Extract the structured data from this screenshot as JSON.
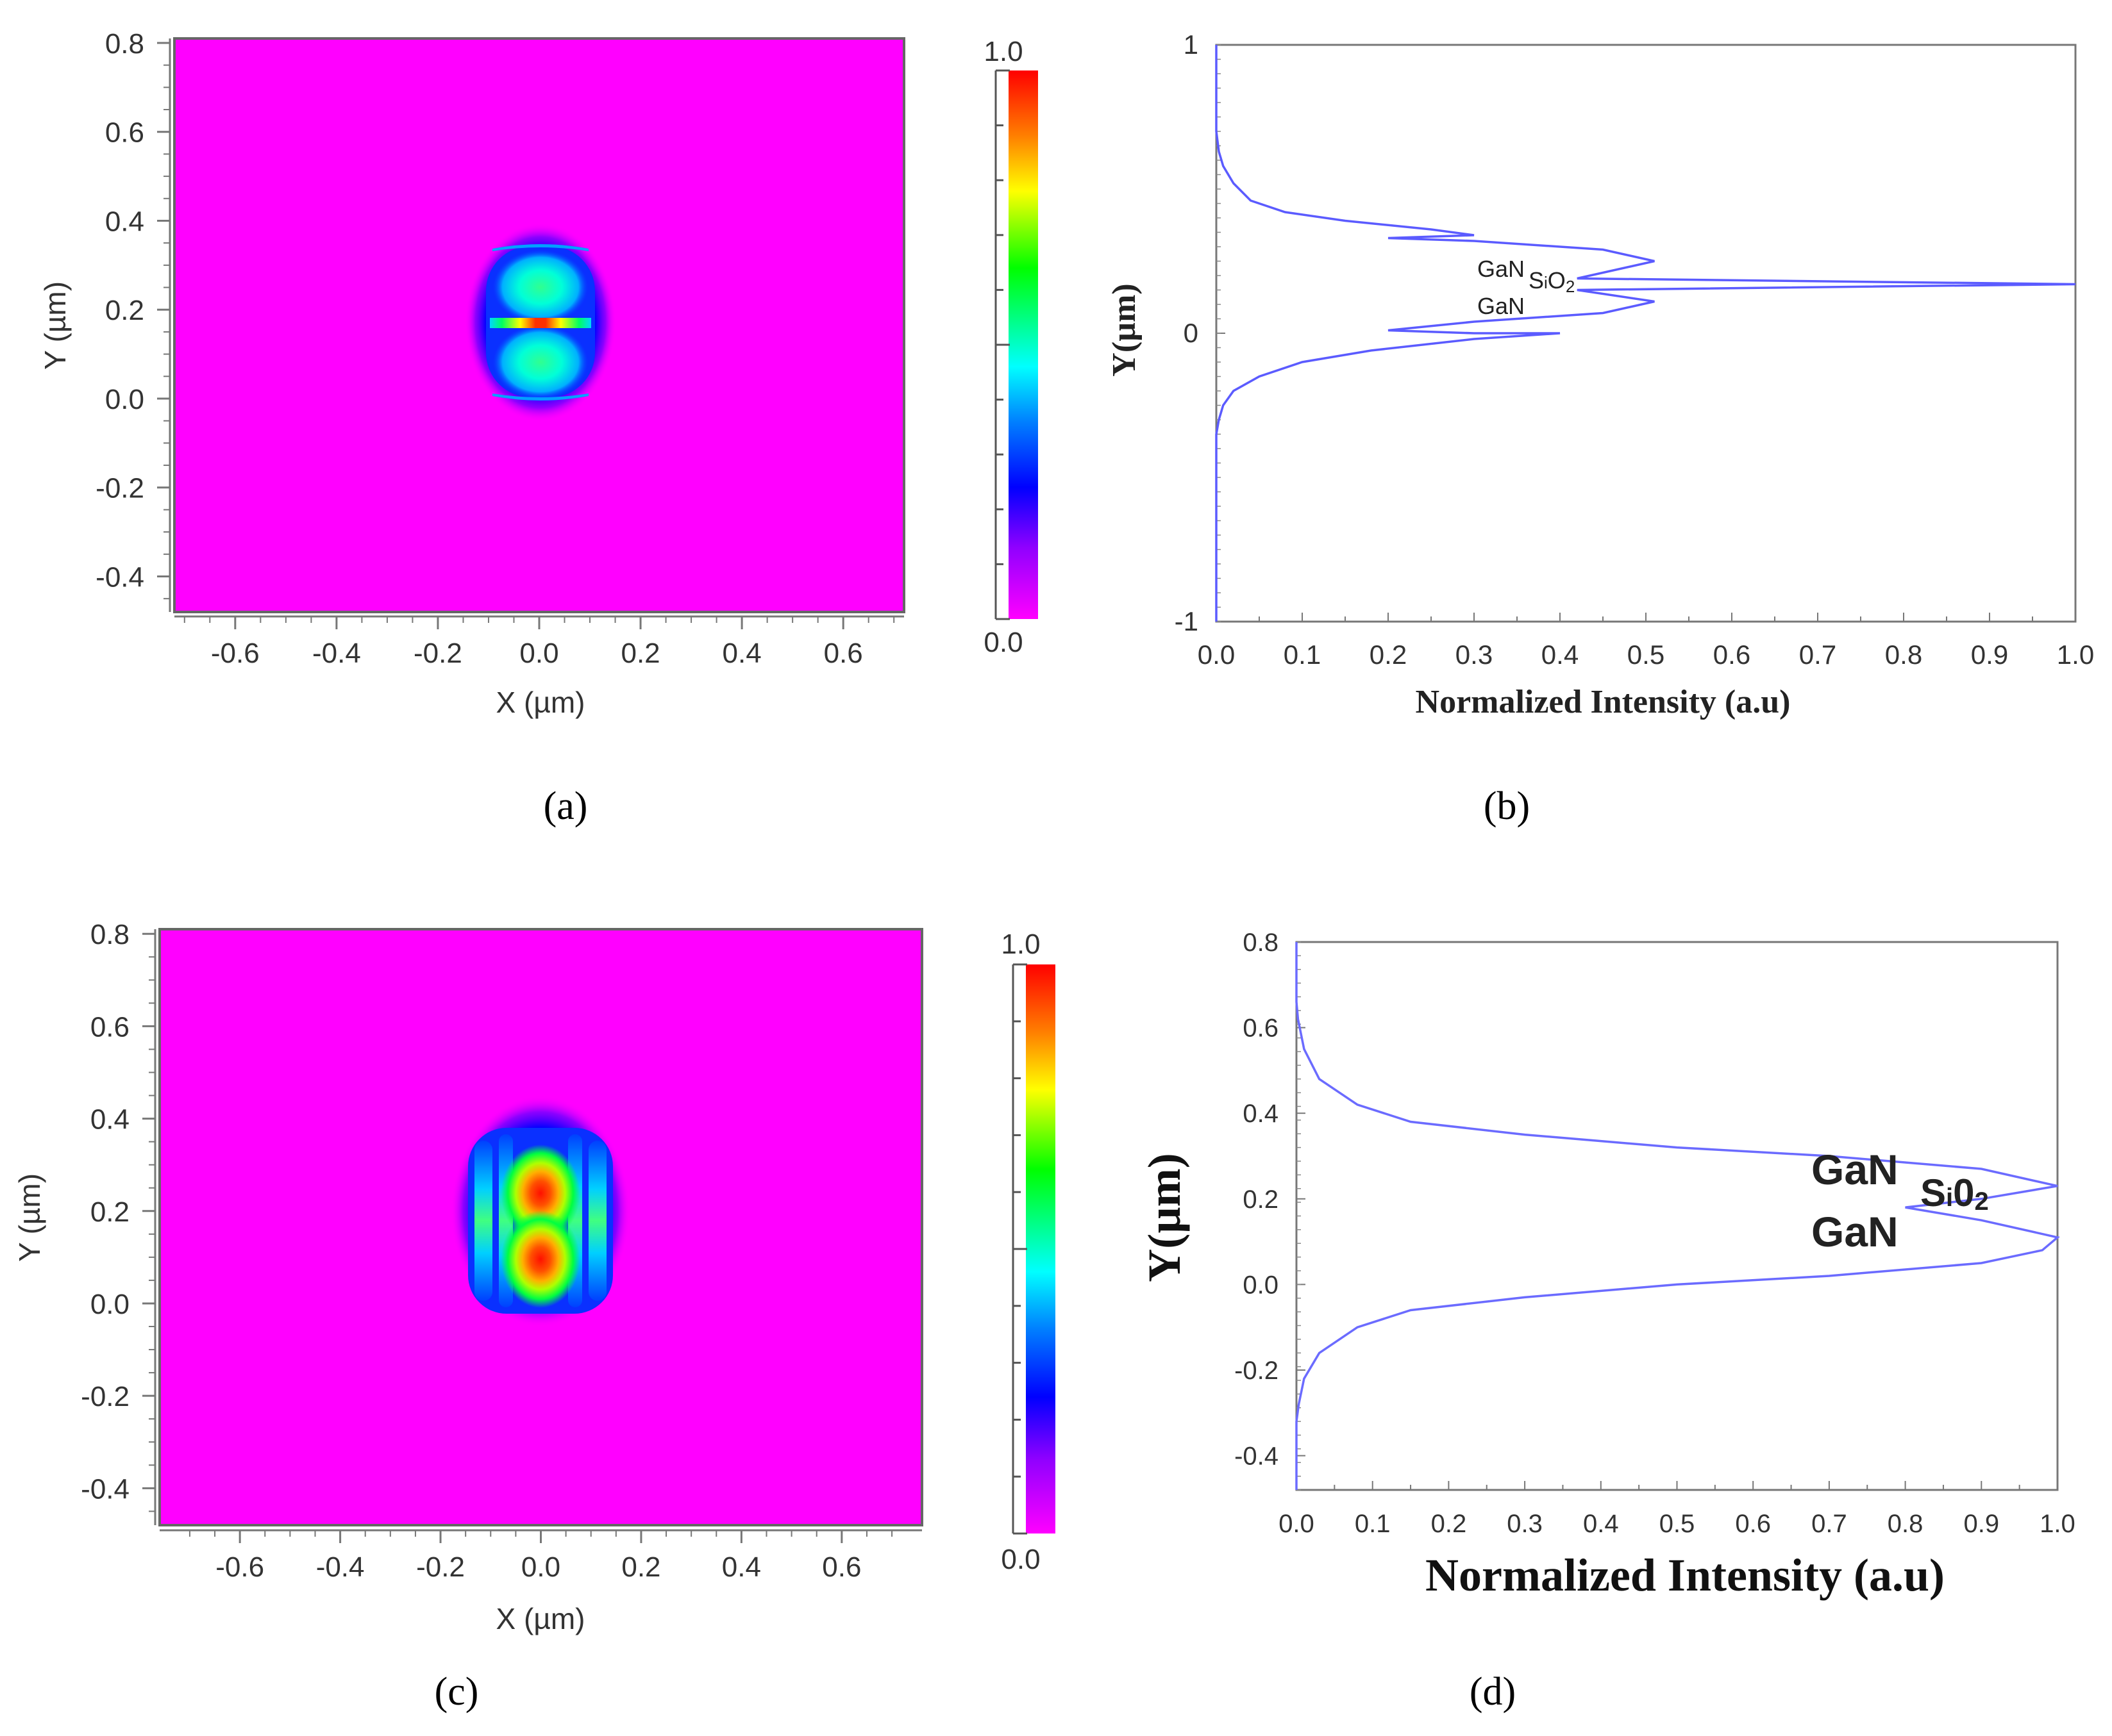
{
  "chart_data": [
    {
      "panel": "(a)",
      "type": "heatmap",
      "xlabel": "X (µm)",
      "ylabel": "Y (µm)",
      "xlim": [
        -0.72,
        0.72
      ],
      "ylim": [
        -0.48,
        0.81
      ],
      "x_ticks": [
        "-0.6",
        "-0.4",
        "-0.2",
        "0.0",
        "0.2",
        "0.4",
        "0.6"
      ],
      "y_ticks": [
        "0.8",
        "0.6",
        "0.4",
        "0.2",
        "0.0",
        "-0.2",
        "-0.4"
      ],
      "colorbar": {
        "max_label": "1.0",
        "min_label": "0.0"
      },
      "background_color": "#ff00ff",
      "mode": "field concentrated in thin SiO2 slot at y ≈ 0.17 µm, lobes at y ≈ 0.23 and 0.10 µm"
    },
    {
      "panel": "(b)",
      "type": "line",
      "xlabel": "Normalized Intensity (a.u)",
      "ylabel": "Y(µm)",
      "xlim": [
        0,
        1
      ],
      "ylim": [
        -1,
        1
      ],
      "x_ticks": [
        "0.0",
        "0.1",
        "0.2",
        "0.3",
        "0.4",
        "0.5",
        "0.6",
        "0.7",
        "0.8",
        "0.9",
        "1.0"
      ],
      "y_ticks": [
        "1",
        "0",
        "-1"
      ],
      "series_color": "#5b5bff",
      "annotations": [
        "GaN",
        "SiO2",
        "GaN"
      ],
      "series": [
        {
          "points": [
            [
              0.0,
              -1.0
            ],
            [
              0.0,
              -0.35
            ],
            [
              0.003,
              -0.3
            ],
            [
              0.008,
              -0.25
            ],
            [
              0.02,
              -0.2
            ],
            [
              0.05,
              -0.15
            ],
            [
              0.1,
              -0.1
            ],
            [
              0.18,
              -0.06
            ],
            [
              0.3,
              -0.02
            ],
            [
              0.4,
              0.0
            ],
            [
              0.3,
              0.0
            ],
            [
              0.2,
              0.01
            ],
            [
              0.3,
              0.04
            ],
            [
              0.45,
              0.07
            ],
            [
              0.51,
              0.11
            ],
            [
              0.42,
              0.15
            ],
            [
              1.0,
              0.17
            ],
            [
              0.42,
              0.19
            ],
            [
              0.51,
              0.25
            ],
            [
              0.45,
              0.29
            ],
            [
              0.3,
              0.32
            ],
            [
              0.2,
              0.33
            ],
            [
              0.3,
              0.34
            ],
            [
              0.25,
              0.36
            ],
            [
              0.15,
              0.39
            ],
            [
              0.08,
              0.42
            ],
            [
              0.04,
              0.46
            ],
            [
              0.02,
              0.52
            ],
            [
              0.008,
              0.58
            ],
            [
              0.003,
              0.63
            ],
            [
              0.0,
              0.7
            ],
            [
              0.0,
              1.0
            ]
          ]
        }
      ]
    },
    {
      "panel": "(c)",
      "type": "heatmap",
      "xlabel": "X (µm)",
      "ylabel": "Y (µm)",
      "xlim": [
        -0.76,
        0.76
      ],
      "ylim": [
        -0.48,
        0.81
      ],
      "x_ticks": [
        "-0.6",
        "-0.4",
        "-0.2",
        "0.0",
        "0.2",
        "0.4",
        "0.6"
      ],
      "y_ticks": [
        "0.8",
        "0.6",
        "0.4",
        "0.2",
        "0.0",
        "-0.2",
        "-0.4"
      ],
      "colorbar": {
        "max_label": "1.0",
        "min_label": "0.0"
      },
      "background_color": "#ff00ff",
      "mode": "two maxima in GaN layers at y ≈ 0.23 and 0.10 µm"
    },
    {
      "panel": "(d)",
      "type": "line",
      "xlabel": "Normalized Intensity (a.u)",
      "ylabel": "Y(µm)",
      "xlim": [
        0,
        1
      ],
      "ylim": [
        -0.48,
        0.8
      ],
      "x_ticks": [
        "0.0",
        "0.1",
        "0.2",
        "0.3",
        "0.4",
        "0.5",
        "0.6",
        "0.7",
        "0.8",
        "0.9",
        "1.0"
      ],
      "y_ticks": [
        "0.8",
        "0.6",
        "0.4",
        "0.2",
        "0.0",
        "-0.2",
        "-0.4"
      ],
      "series_color": "#6b6bff",
      "annotations": [
        "GaN",
        "SiO2",
        "GaN"
      ],
      "series": [
        {
          "points": [
            [
              0.0,
              -0.48
            ],
            [
              0.0,
              -0.32
            ],
            [
              0.003,
              -0.28
            ],
            [
              0.01,
              -0.22
            ],
            [
              0.03,
              -0.16
            ],
            [
              0.08,
              -0.1
            ],
            [
              0.15,
              -0.06
            ],
            [
              0.3,
              -0.03
            ],
            [
              0.5,
              0.0
            ],
            [
              0.7,
              0.02
            ],
            [
              0.9,
              0.05
            ],
            [
              0.98,
              0.08
            ],
            [
              1.0,
              0.11
            ],
            [
              0.9,
              0.15
            ],
            [
              0.8,
              0.18
            ],
            [
              0.9,
              0.2
            ],
            [
              1.0,
              0.23
            ],
            [
              0.9,
              0.27
            ],
            [
              0.7,
              0.3
            ],
            [
              0.5,
              0.32
            ],
            [
              0.3,
              0.35
            ],
            [
              0.15,
              0.38
            ],
            [
              0.08,
              0.42
            ],
            [
              0.03,
              0.48
            ],
            [
              0.01,
              0.55
            ],
            [
              0.002,
              0.62
            ],
            [
              0.0,
              0.66
            ],
            [
              0.0,
              0.8
            ]
          ]
        }
      ]
    }
  ],
  "panels": {
    "a": {
      "label": "(a)"
    },
    "b": {
      "label": "(b)",
      "ann_gan_top": "GaN",
      "ann_sio2_main": "S",
      "ann_sio2_sub": "i",
      "ann_sio2_tail": "O",
      "ann_sio2_idx": "2",
      "ann_gan_bottom": "GaN"
    },
    "c": {
      "label": "(c)"
    },
    "d": {
      "label": "(d)",
      "ann_gan_top": "GaN",
      "ann_sio2_main": "S",
      "ann_sio2_sub": "i",
      "ann_sio2_tail": "0",
      "ann_sio2_idx": "2",
      "ann_gan_bottom": "GaN"
    }
  }
}
